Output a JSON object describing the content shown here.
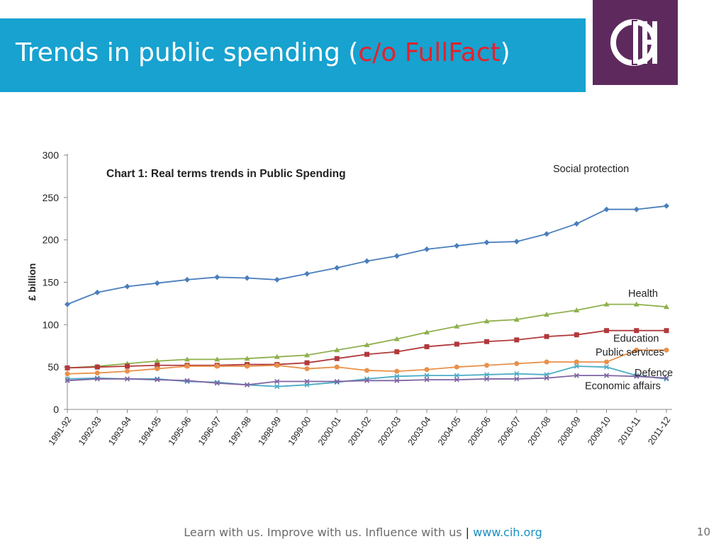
{
  "slide": {
    "title_main": "Trends in public spending (",
    "title_source": "c/o FullFact",
    "title_close": ")",
    "footer_tagline": "Learn with us. Improve with us. Influence with us",
    "footer_separator": "|",
    "footer_link": "www.cih.org",
    "page_number": "10",
    "logo_label": "CIH"
  },
  "colors": {
    "banner": "#17a2d0",
    "accent_red": "#e8202a",
    "logo_purple": "#5e2a5e"
  },
  "chart_data": {
    "type": "line",
    "title": "Chart 1: Real terms trends in Public Spending",
    "xlabel": "",
    "ylabel": "£ billion",
    "ylim": [
      0,
      300
    ],
    "yticks": [
      0,
      50,
      100,
      150,
      200,
      250,
      300
    ],
    "grid": false,
    "legend": "inline labels at line ends",
    "categories": [
      "1991-92",
      "1992-93",
      "1993-94",
      "1994-95",
      "1995-96",
      "1996-97",
      "1997-98",
      "1998-99",
      "1999-00",
      "2000-01",
      "2001-02",
      "2002-03",
      "2003-04",
      "2004-05",
      "2005-06",
      "2006-07",
      "2007-08",
      "2008-09",
      "2009-10",
      "2010-11",
      "2011-12"
    ],
    "series": [
      {
        "name": "Social protection",
        "color": "#4a7ebb",
        "marker": "diamond",
        "values": [
          124,
          138,
          145,
          149,
          153,
          156,
          155,
          153,
          160,
          167,
          175,
          181,
          189,
          193,
          197,
          198,
          207,
          219,
          236,
          236,
          240
        ]
      },
      {
        "name": "Health",
        "color": "#8fb04e",
        "marker": "triangle",
        "values": [
          49,
          51,
          54,
          57,
          59,
          59,
          60,
          62,
          64,
          70,
          76,
          83,
          91,
          98,
          104,
          106,
          112,
          117,
          124,
          124,
          121
        ]
      },
      {
        "name": "Education",
        "color": "#b2393b",
        "marker": "square",
        "values": [
          49,
          50,
          51,
          52,
          52,
          52,
          53,
          53,
          55,
          60,
          65,
          68,
          74,
          77,
          80,
          82,
          86,
          88,
          93,
          93,
          93
        ]
      },
      {
        "name": "Public services",
        "color": "#e8914a",
        "marker": "circle",
        "values": [
          42,
          43,
          45,
          48,
          51,
          51,
          51,
          52,
          48,
          50,
          46,
          45,
          47,
          50,
          52,
          54,
          56,
          56,
          56,
          70,
          70
        ]
      },
      {
        "name": "Defence",
        "color": "#4bacc6",
        "marker": "x",
        "values": [
          36,
          37,
          36,
          36,
          33,
          32,
          29,
          27,
          29,
          32,
          36,
          39,
          40,
          40,
          41,
          42,
          41,
          51,
          50,
          40,
          36
        ]
      },
      {
        "name": "Economic affairs",
        "color": "#7f64a1",
        "marker": "x",
        "values": [
          34,
          36,
          36,
          35,
          34,
          31,
          29,
          33,
          33,
          33,
          34,
          34,
          35,
          35,
          36,
          36,
          37,
          40,
          40,
          39,
          37
        ]
      }
    ]
  }
}
